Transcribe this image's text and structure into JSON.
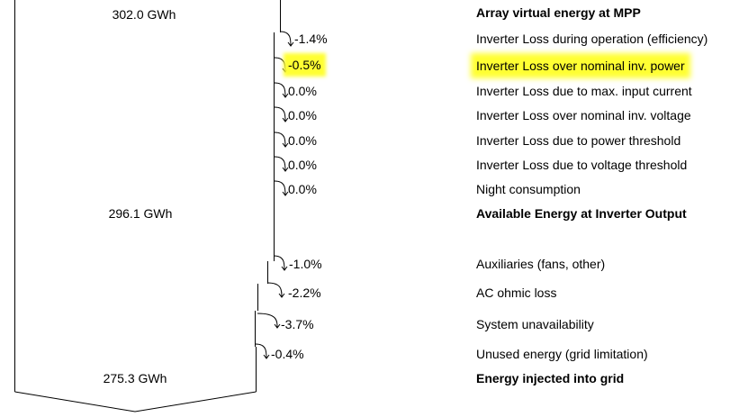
{
  "flow": {
    "energies": [
      {
        "value": "302.0 GWh",
        "label": "Array virtual energy at MPP"
      },
      {
        "value": "296.1 GWh",
        "label": "Available Energy at Inverter Output"
      },
      {
        "value": "275.3 GWh",
        "label": "Energy injected into grid"
      }
    ],
    "losses": [
      {
        "pct": "-1.4%",
        "label": "Inverter Loss during operation (efficiency)",
        "highlight": false
      },
      {
        "pct": "-0.5%",
        "label": "Inverter Loss over nominal inv. power",
        "highlight": true
      },
      {
        "pct": "0.0%",
        "label": "Inverter Loss due to max. input current",
        "highlight": false
      },
      {
        "pct": "0.0%",
        "label": "Inverter Loss over nominal inv. voltage",
        "highlight": false
      },
      {
        "pct": "0.0%",
        "label": "Inverter Loss due to power threshold",
        "highlight": false
      },
      {
        "pct": "0.0%",
        "label": "Inverter Loss due to voltage threshold",
        "highlight": false
      },
      {
        "pct": "0.0%",
        "label": "Night consumption",
        "highlight": false
      },
      {
        "pct": "-1.0%",
        "label": "Auxiliaries (fans, other)",
        "highlight": false
      },
      {
        "pct": "-2.2%",
        "label": "AC ohmic loss",
        "highlight": false
      },
      {
        "pct": "-3.7%",
        "label": "System unavailability",
        "highlight": false
      },
      {
        "pct": "-0.4%",
        "label": "Unused energy (grid limitation)",
        "highlight": false
      }
    ]
  },
  "colors": {
    "highlight": "#ffff33",
    "line": "#000000"
  }
}
